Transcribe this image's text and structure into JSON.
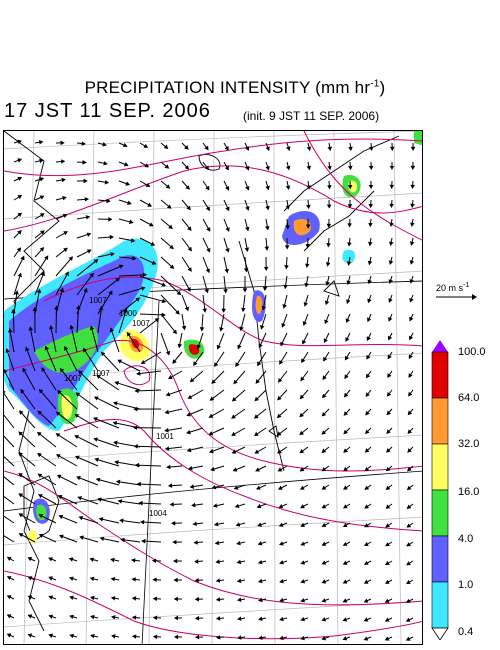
{
  "title": {
    "main": "PRECIPITATION INTENSITY (mm hr",
    "exp": "-1",
    "close": ")"
  },
  "subtitle": "17 JST 11 SEP. 2006",
  "init_text": "(init. 9 JST 11 SEP. 2006)",
  "wind_reference": {
    "label": "20 m s",
    "exp": "-1"
  },
  "isobar_labels": [
    "1007",
    "1000",
    "1001",
    "1004",
    "1007",
    "1007",
    "1007"
  ],
  "colorbar": {
    "levels": [
      "100.0",
      "64.0",
      "32.0",
      "16.0",
      "4.0",
      "1.0",
      "0.4"
    ],
    "colors": [
      "#a000ff",
      "#e00000",
      "#ff9a30",
      "#ffff60",
      "#40e040",
      "#6060ff",
      "#40e8ff",
      "#ffffff"
    ]
  }
}
